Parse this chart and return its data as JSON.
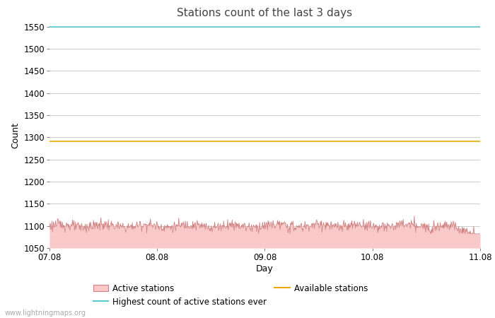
{
  "title": "Stations count of the last 3 days",
  "xlabel": "Day",
  "ylabel": "Count",
  "ylim": [
    1050,
    1560
  ],
  "xlim": [
    0,
    288
  ],
  "yticks": [
    1050,
    1100,
    1150,
    1200,
    1250,
    1300,
    1350,
    1400,
    1450,
    1500,
    1550
  ],
  "xtick_positions": [
    0,
    72,
    144,
    216,
    288
  ],
  "xtick_labels": [
    "07.08",
    "08.08",
    "09.08",
    "10.08",
    "11.08"
  ],
  "highest_count_value": 1549,
  "highest_count_color": "#59c9d6",
  "available_stations_value": 1291,
  "available_stations_color": "#f0a800",
  "active_stations_base": 1100,
  "active_stations_fill_color": "#f9c8c8",
  "active_stations_line_color": "#d08080",
  "background_color": "#ffffff",
  "grid_color": "#cccccc",
  "watermark": "www.lightningmaps.org",
  "title_fontsize": 11,
  "axis_label_fontsize": 9,
  "tick_fontsize": 8.5,
  "legend_fontsize": 8.5,
  "num_points": 864
}
